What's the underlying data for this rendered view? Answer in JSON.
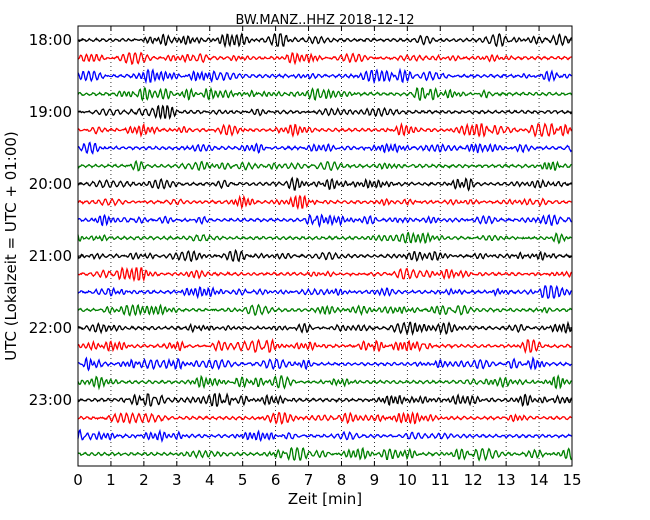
{
  "chart_data": {
    "type": "line",
    "title": "BW.MANZ..HHZ 2018-12-12",
    "xlabel": "Zeit  [min]",
    "ylabel": "UTC (Lokalzeit = UTC + 01:00)",
    "xlim": [
      0,
      15
    ],
    "x_ticks": [
      "0",
      "1",
      "2",
      "3",
      "4",
      "5",
      "6",
      "7",
      "8",
      "9",
      "10",
      "11",
      "12",
      "13",
      "14",
      "15"
    ],
    "y_tick_labels": [
      "18:00",
      "19:00",
      "20:00",
      "21:00",
      "22:00",
      "23:00"
    ],
    "trace_interval_min": 15,
    "trace_count": 24,
    "trace_colors": [
      "#000000",
      "#ff0000",
      "#0000ff",
      "#008000"
    ],
    "grid": "vertical dotted lines at each minute"
  }
}
